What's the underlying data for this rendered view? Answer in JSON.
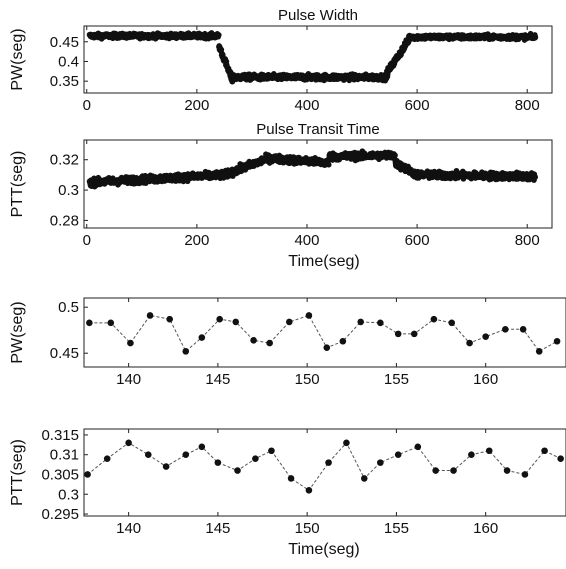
{
  "colors": {
    "marker": "#111111",
    "line": "#555555",
    "axis": "#222222"
  },
  "chart_data": [
    {
      "type": "scatter",
      "title": "Pulse Width",
      "xlabel": "",
      "ylabel": "PW(seg)",
      "xlim": [
        -5,
        845
      ],
      "ylim": [
        0.32,
        0.49
      ],
      "xticks": [
        0,
        200,
        400,
        600,
        800
      ],
      "yticks": [
        0.35,
        0.4,
        0.45
      ],
      "ytick_labels": [
        "0.35",
        "0.4",
        "0.45"
      ],
      "grid": false,
      "series": [
        {
          "segments": [
            {
              "x": [
                5,
                240
              ],
              "mean": 0.465,
              "spread": 0.01
            },
            {
              "x": [
                240,
                265
              ],
              "ramp": [
                0.44,
                0.35
              ],
              "spread": 0.015
            },
            {
              "x": [
                265,
                545
              ],
              "mean": 0.36,
              "spread": 0.012
            },
            {
              "x": [
                545,
                585
              ],
              "ramp": [
                0.37,
                0.455
              ],
              "spread": 0.015
            },
            {
              "x": [
                585,
                815
              ],
              "mean": 0.462,
              "spread": 0.01
            }
          ]
        }
      ]
    },
    {
      "type": "scatter",
      "title": "Pulse Transit Time",
      "xlabel": "Time(seg)",
      "ylabel": "PTT(seg)",
      "xlim": [
        -5,
        845
      ],
      "ylim": [
        0.275,
        0.333
      ],
      "xticks": [
        0,
        200,
        400,
        600,
        800
      ],
      "yticks": [
        0.28,
        0.3,
        0.32
      ],
      "ytick_labels": [
        "0.28",
        "0.3",
        "0.32"
      ],
      "grid": false,
      "series": [
        {
          "segments": [
            {
              "x": [
                5,
                250
              ],
              "ramp": [
                0.305,
                0.31
              ],
              "spread": 0.004
            },
            {
              "x": [
                250,
                330
              ],
              "ramp": [
                0.31,
                0.321
              ],
              "spread": 0.004
            },
            {
              "x": [
                330,
                440
              ],
              "ramp": [
                0.321,
                0.318
              ],
              "spread": 0.004
            },
            {
              "x": [
                440,
                560
              ],
              "ramp": [
                0.322,
                0.323
              ],
              "spread": 0.004
            },
            {
              "x": [
                560,
                600
              ],
              "ramp": [
                0.318,
                0.31
              ],
              "spread": 0.004
            },
            {
              "x": [
                600,
                815
              ],
              "ramp": [
                0.31,
                0.309
              ],
              "spread": 0.004
            }
          ]
        }
      ]
    },
    {
      "type": "line",
      "title": "",
      "xlabel": "",
      "ylabel": "PW(seg)",
      "xlim": [
        137.5,
        164.5
      ],
      "ylim": [
        0.435,
        0.51
      ],
      "xticks": [
        140,
        145,
        150,
        155,
        160
      ],
      "yticks": [
        0.45,
        0.5
      ],
      "ytick_labels": [
        "0.45",
        "0.5"
      ],
      "grid": false,
      "series": [
        {
          "x": [
            137.8,
            139.0,
            140.1,
            141.2,
            142.3,
            143.2,
            144.1,
            145.1,
            146.0,
            147.0,
            147.9,
            149.0,
            150.1,
            151.1,
            152.0,
            153.0,
            154.1,
            155.1,
            156.0,
            157.1,
            158.1,
            159.1,
            160.0,
            161.1,
            162.1,
            163.0,
            164.0
          ],
          "values": [
            0.483,
            0.483,
            0.461,
            0.491,
            0.487,
            0.452,
            0.467,
            0.487,
            0.484,
            0.464,
            0.461,
            0.484,
            0.491,
            0.456,
            0.463,
            0.484,
            0.483,
            0.471,
            0.471,
            0.487,
            0.483,
            0.461,
            0.468,
            0.476,
            0.476,
            0.452,
            0.463
          ]
        }
      ]
    },
    {
      "type": "line",
      "title": "",
      "xlabel": "Time(seg)",
      "ylabel": "PTT(seg)",
      "xlim": [
        137.5,
        164.5
      ],
      "ylim": [
        0.2945,
        0.3165
      ],
      "xticks": [
        140,
        145,
        150,
        155,
        160
      ],
      "yticks": [
        0.295,
        0.3,
        0.305,
        0.31,
        0.315
      ],
      "ytick_labels": [
        "0.295",
        "0.3",
        "0.305",
        "0.31",
        "0.315"
      ],
      "grid": false,
      "series": [
        {
          "x": [
            137.7,
            138.8,
            140.0,
            141.1,
            142.1,
            143.2,
            144.1,
            145.0,
            146.1,
            147.1,
            148.0,
            149.1,
            150.1,
            151.2,
            152.2,
            153.2,
            154.1,
            155.1,
            156.2,
            157.2,
            158.2,
            159.2,
            160.2,
            161.2,
            162.2,
            163.3,
            164.2
          ],
          "values": [
            0.305,
            0.309,
            0.313,
            0.31,
            0.307,
            0.31,
            0.312,
            0.308,
            0.306,
            0.309,
            0.311,
            0.304,
            0.301,
            0.308,
            0.313,
            0.304,
            0.308,
            0.31,
            0.312,
            0.306,
            0.306,
            0.31,
            0.311,
            0.306,
            0.305,
            0.311,
            0.309
          ]
        }
      ]
    }
  ]
}
